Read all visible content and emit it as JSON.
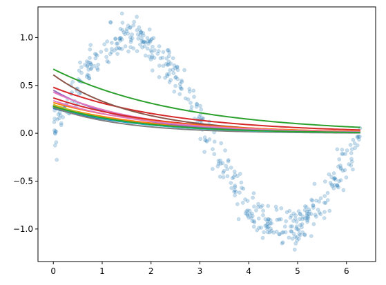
{
  "chart_data": {
    "type": "scatter",
    "title": "",
    "xlabel": "",
    "ylabel": "",
    "xlim": [
      -0.314,
      6.597
    ],
    "ylim": [
      -1.34,
      1.32
    ],
    "x_ticks": [
      0,
      1,
      2,
      3,
      4,
      5,
      6
    ],
    "x_tick_labels": [
      "0",
      "1",
      "2",
      "3",
      "4",
      "5",
      "6"
    ],
    "y_ticks": [
      -1.0,
      -0.5,
      0.0,
      0.5,
      1.0
    ],
    "y_tick_labels": [
      "−1.0",
      "−0.5",
      "0.0",
      "0.5",
      "1.0"
    ],
    "grid": false,
    "legend": "none",
    "scatter_series": {
      "description_of_data": "noisy samples of sin(x) over [0, 2π]",
      "x_range": [
        0,
        6.283
      ],
      "count": 500,
      "noise_sd": 0.1,
      "color": "#1f77b4",
      "alpha": 0.25
    },
    "curves": [
      {
        "color": "#1f77b4",
        "a": 0.26,
        "b": 0.55
      },
      {
        "color": "#ff7f0e",
        "a": 0.29,
        "b": 0.5
      },
      {
        "color": "#2ca02c",
        "a": 0.67,
        "b": 0.38
      },
      {
        "color": "#d62728",
        "a": 0.48,
        "b": 0.42
      },
      {
        "color": "#9467bd",
        "a": 0.45,
        "b": 0.65
      },
      {
        "color": "#8c564b",
        "a": 0.61,
        "b": 0.6
      },
      {
        "color": "#e377c2",
        "a": 0.43,
        "b": 0.55
      },
      {
        "color": "#7f7f7f",
        "a": 0.27,
        "b": 0.7
      },
      {
        "color": "#bcbd22",
        "a": 0.3,
        "b": 0.6
      },
      {
        "color": "#17becf",
        "a": 0.28,
        "b": 0.58
      },
      {
        "color": "#d62728",
        "a": 0.37,
        "b": 0.48
      },
      {
        "color": "#ff7f0e",
        "a": 0.32,
        "b": 0.45
      },
      {
        "color": "#e377c2",
        "a": 0.34,
        "b": 0.5
      },
      {
        "color": "#2ca02c",
        "a": 0.28,
        "b": 0.55
      }
    ]
  }
}
